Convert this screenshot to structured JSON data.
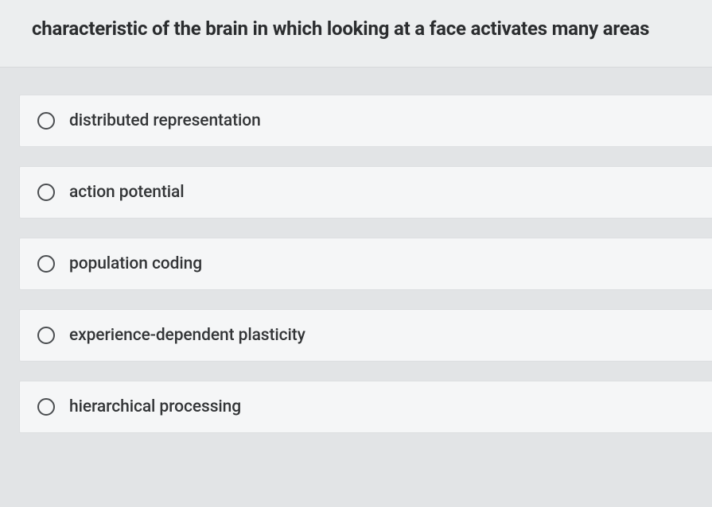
{
  "question": {
    "text": "characteristic of the brain in which looking at a face activates many areas"
  },
  "options": [
    {
      "label": "distributed representation"
    },
    {
      "label": "action potential"
    },
    {
      "label": "population coding"
    },
    {
      "label": "experience-dependent plasticity"
    },
    {
      "label": "hierarchical processing"
    }
  ],
  "style": {
    "page_bg": "#e2e4e6",
    "question_bg": "#eceeef",
    "option_bg": "#f5f6f7",
    "option_border": "#dddfe1",
    "radio_border": "#4a4d50",
    "text_color": "#2b2d2f",
    "option_text_color": "#333537",
    "question_fontsize": 24,
    "option_fontsize": 21
  }
}
